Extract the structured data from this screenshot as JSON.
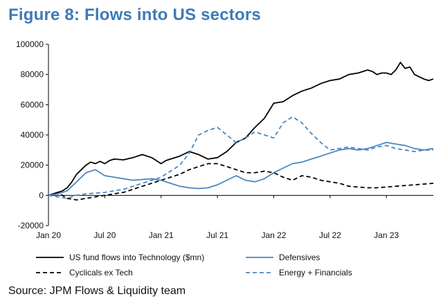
{
  "figure_title": "Figure 8: Flows into US sectors",
  "source": "Source: JPM Flows & Liquidity team",
  "chart_data": {
    "type": "line",
    "title": "Figure 8: Flows into US sectors",
    "xlabel": "",
    "ylabel": "",
    "ylim": [
      -20000,
      100000
    ],
    "xlim": [
      0,
      41
    ],
    "yticks": [
      -20000,
      0,
      20000,
      40000,
      60000,
      80000,
      100000
    ],
    "ytick_labels": [
      "-20000",
      "0",
      "20000",
      "40000",
      "60000",
      "80000",
      "100000"
    ],
    "xticks": [
      0,
      6,
      12,
      18,
      24,
      30,
      36
    ],
    "xtick_labels": [
      "Jan 20",
      "Jul 20",
      "Jan 21",
      "Jul 21",
      "Jan 22",
      "Jul 22",
      "Jan 23"
    ],
    "x_units": "months since Jan 2020",
    "series": [
      {
        "name": "US fund flows into Technology ($mn)",
        "color": "#000000",
        "dash": "solid",
        "x": [
          0,
          0.5,
          1,
          1.5,
          2,
          2.5,
          3,
          3.5,
          4,
          4.5,
          5,
          5.5,
          6,
          6.5,
          7,
          8,
          9,
          10,
          11,
          12,
          12.5,
          13,
          14,
          15,
          16,
          17,
          18,
          19,
          20,
          21,
          22,
          23,
          23.5,
          24,
          25,
          26,
          27,
          28,
          29,
          30,
          31,
          32,
          33,
          34,
          34.5,
          35,
          35.5,
          36,
          36.5,
          37,
          37.5,
          38,
          38.5,
          39,
          40,
          40.5,
          41
        ],
        "y": [
          0,
          1000,
          2000,
          3000,
          5000,
          9000,
          14000,
          17000,
          20000,
          22000,
          21000,
          22500,
          21000,
          23000,
          24000,
          23500,
          25000,
          27000,
          25000,
          21000,
          23000,
          24000,
          26000,
          29000,
          27000,
          24000,
          25000,
          29000,
          35000,
          38000,
          45000,
          51000,
          56000,
          61000,
          62000,
          66000,
          69000,
          71000,
          74000,
          76000,
          77000,
          80000,
          81000,
          83000,
          82000,
          80000,
          81000,
          81000,
          80000,
          83000,
          88000,
          84000,
          85000,
          80000,
          77000,
          76000,
          77000
        ]
      },
      {
        "name": "Cyclicals ex Tech",
        "color": "#000000",
        "dash": "dashed",
        "x": [
          0,
          1,
          2,
          3,
          4,
          5,
          6,
          7,
          8,
          9,
          10,
          11,
          12,
          13,
          14,
          15,
          16,
          17,
          18,
          19,
          20,
          21,
          22,
          23,
          24,
          25,
          26,
          27,
          28,
          29,
          30,
          31,
          32,
          33,
          34,
          35,
          36,
          37,
          38,
          39,
          40,
          41
        ],
        "y": [
          0,
          2000,
          -2000,
          -3000,
          -2000,
          -1000,
          0,
          1000,
          2000,
          4000,
          6000,
          8000,
          10000,
          12000,
          14000,
          17000,
          19000,
          21000,
          21000,
          19000,
          17000,
          15000,
          15000,
          16000,
          15000,
          12000,
          10000,
          13000,
          12000,
          10000,
          9000,
          8000,
          6000,
          5500,
          5000,
          5000,
          5500,
          6000,
          6500,
          7000,
          7500,
          8000
        ]
      },
      {
        "name": "Defensives",
        "color": "#4a86c0",
        "dash": "solid",
        "x": [
          0,
          1,
          2,
          3,
          4,
          5,
          6,
          7,
          8,
          9,
          10,
          11,
          12,
          13,
          14,
          15,
          16,
          17,
          18,
          19,
          20,
          21,
          22,
          23,
          24,
          25,
          26,
          27,
          28,
          29,
          30,
          31,
          32,
          33,
          34,
          35,
          36,
          37,
          38,
          39,
          40,
          41
        ],
        "y": [
          0,
          1000,
          3000,
          9000,
          15000,
          17000,
          13000,
          12000,
          11000,
          10000,
          10500,
          11000,
          10000,
          8000,
          6000,
          5000,
          4500,
          5000,
          7000,
          10000,
          13000,
          10000,
          9000,
          11000,
          15000,
          18000,
          21000,
          22000,
          24000,
          26000,
          28000,
          30000,
          31000,
          30000,
          31000,
          33000,
          35000,
          34000,
          33000,
          31000,
          30000,
          31000
        ]
      },
      {
        "name": "Energy + Financials",
        "color": "#4a86c0",
        "dash": "dashed",
        "x": [
          0,
          1,
          2,
          3,
          4,
          5,
          6,
          7,
          8,
          9,
          10,
          11,
          12,
          13,
          14,
          15,
          16,
          17,
          18,
          19,
          20,
          21,
          22,
          23,
          24,
          25,
          26,
          27,
          28,
          29,
          30,
          31,
          32,
          33,
          34,
          35,
          36,
          37,
          38,
          39,
          40,
          41
        ],
        "y": [
          0,
          -1000,
          -2000,
          0,
          1000,
          1500,
          2000,
          3000,
          4000,
          6000,
          8000,
          10000,
          12000,
          16000,
          20000,
          28000,
          40000,
          43000,
          45000,
          40000,
          35000,
          38000,
          42000,
          40000,
          38000,
          48000,
          52000,
          48000,
          41000,
          35000,
          30000,
          31000,
          32000,
          31000,
          30000,
          32000,
          33000,
          31000,
          30000,
          29000,
          30000,
          30000
        ]
      }
    ],
    "legend": [
      {
        "label": "US fund flows into Technology ($mn)",
        "series": 0
      },
      {
        "label": "Defensives",
        "series": 2
      },
      {
        "label": "Cyclicals ex Tech",
        "series": 1
      },
      {
        "label": "Energy + Financials",
        "series": 3
      }
    ],
    "legend_position": "bottom",
    "grid": false
  }
}
